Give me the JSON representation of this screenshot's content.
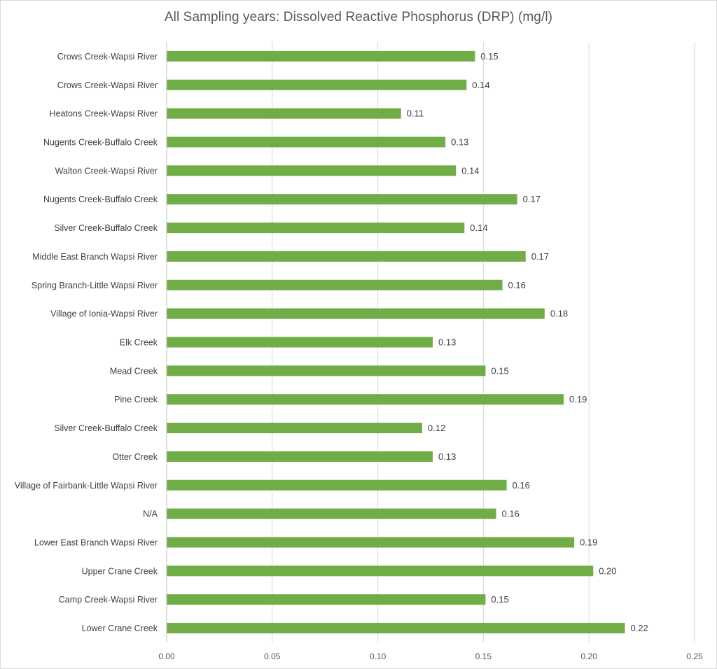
{
  "chart_data": {
    "type": "bar",
    "orientation": "horizontal",
    "title": "All Sampling years: Dissolved Reactive Phosphorus (DRP)  (mg/l)",
    "xlabel": "",
    "ylabel": "",
    "xlim": [
      0,
      0.25
    ],
    "x_ticks": [
      "0.00",
      "0.05",
      "0.10",
      "0.15",
      "0.20",
      "0.25"
    ],
    "grid": "vertical",
    "legend": "none",
    "bar_color": "#70ad47",
    "categories": [
      "Crows Creek-Wapsi River",
      "Crows Creek-Wapsi River",
      "Heatons Creek-Wapsi River",
      "Nugents Creek-Buffalo Creek",
      "Walton Creek-Wapsi River",
      "Nugents Creek-Buffalo Creek",
      "Silver Creek-Buffalo Creek",
      "Middle East Branch Wapsi River",
      "Spring Branch-Little Wapsi River",
      "Village of Ionia-Wapsi River",
      "Elk Creek",
      "Mead Creek",
      "Pine Creek",
      "Silver Creek-Buffalo Creek",
      "Otter Creek",
      "Village of Fairbank-Little Wapsi River",
      "N/A",
      "Lower East Branch Wapsi River",
      "Upper Crane Creek",
      "Camp Creek-Wapsi River",
      "Lower Crane Creek"
    ],
    "values": [
      0.146,
      0.142,
      0.111,
      0.132,
      0.137,
      0.166,
      0.141,
      0.17,
      0.159,
      0.179,
      0.126,
      0.151,
      0.188,
      0.121,
      0.126,
      0.161,
      0.156,
      0.193,
      0.202,
      0.151,
      0.217
    ],
    "data_labels": [
      "0.15",
      "0.14",
      "0.11",
      "0.13",
      "0.14",
      "0.17",
      "0.14",
      "0.17",
      "0.16",
      "0.18",
      "0.13",
      "0.15",
      "0.19",
      "0.12",
      "0.13",
      "0.16",
      "0.16",
      "0.19",
      "0.20",
      "0.15",
      "0.22"
    ]
  }
}
